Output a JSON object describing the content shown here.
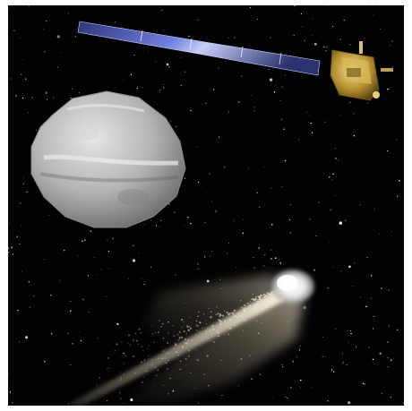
{
  "image": {
    "background_color": "#020204",
    "frame_color": "#ffffff",
    "objects": [
      {
        "name": "spacecraft",
        "icon": "satellite-icon",
        "colors": {
          "panel": "#4a56b8",
          "body": "#c9a544"
        }
      },
      {
        "name": "asteroid",
        "icon": "asteroid-icon",
        "colors": {
          "surface": "#b8b8b8"
        }
      },
      {
        "name": "impact-asteroid",
        "icon": "impact-plume-icon",
        "colors": {
          "plume": "#d9cfb4",
          "core": "#ffffff"
        }
      }
    ],
    "star_field": {
      "density": "dense",
      "color": "#ffffff"
    }
  }
}
